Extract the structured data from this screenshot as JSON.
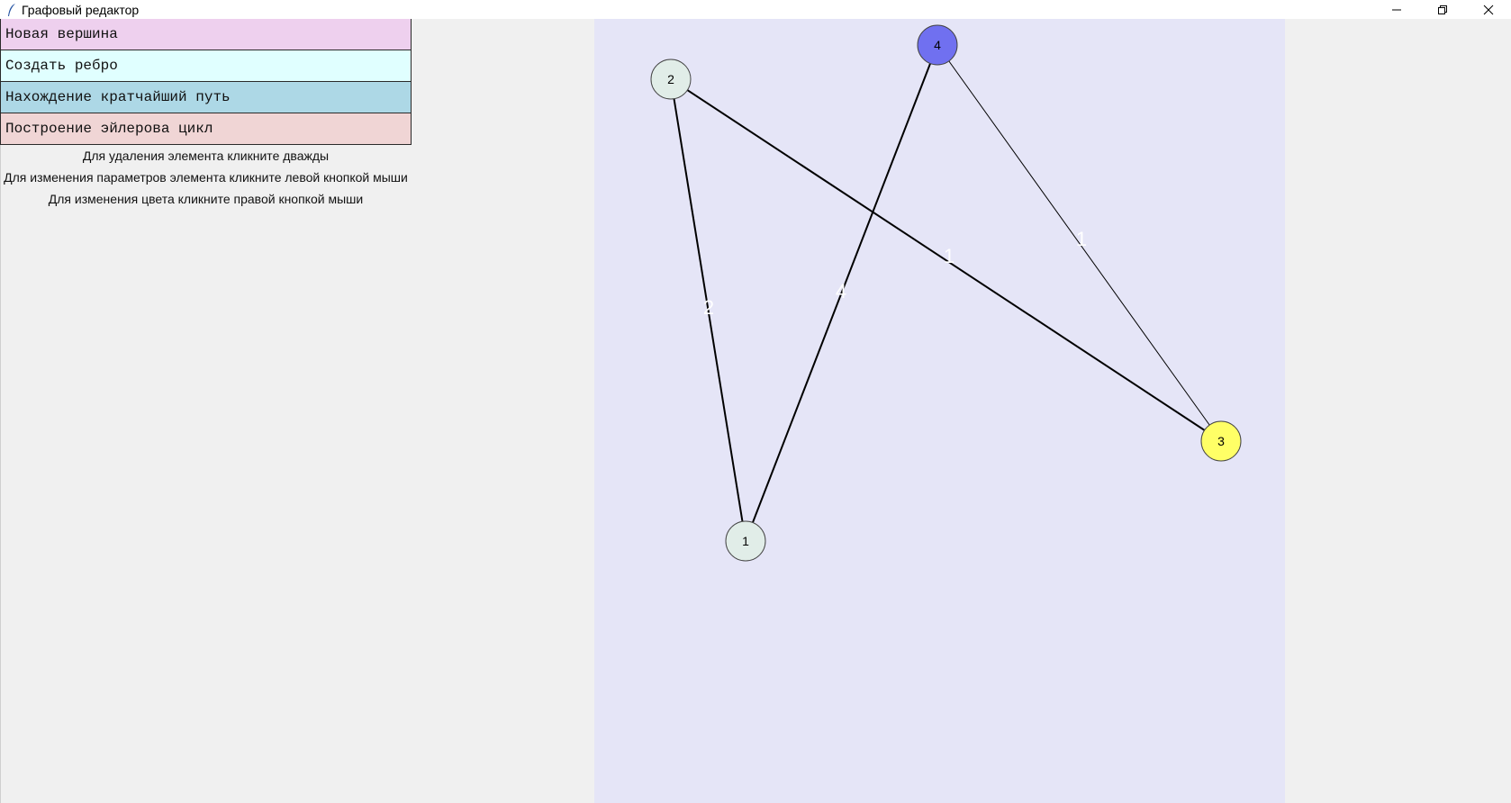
{
  "window": {
    "title": "Графовый редактор",
    "app_icon": "feather-icon",
    "controls": [
      "minimize-icon",
      "restore-icon",
      "close-icon"
    ]
  },
  "menu": [
    {
      "label": "Новая вершина",
      "color": "#eed0ee"
    },
    {
      "label": "Создать ребро",
      "color": "#e0ffff"
    },
    {
      "label": "Нахождение кратчайший путь",
      "color": "#add8e6"
    },
    {
      "label": "Построение эйлерова цикл",
      "color": "#f0d5d5"
    }
  ],
  "hints": [
    "Для удаления элемента кликните дважды",
    "Для изменения параметров элемента кликните левой кнопкой мыши",
    "Для изменения цвета кликните правой кнопкой мыши"
  ],
  "graph": {
    "canvas_color": "#e5e5f7",
    "vertices": [
      {
        "id": "1",
        "label": "1",
        "color": "#e1ede8"
      },
      {
        "id": "2",
        "label": "2",
        "color": "#e1ede8"
      },
      {
        "id": "3",
        "label": "3",
        "color": "#ffff66"
      },
      {
        "id": "4",
        "label": "4",
        "color": "#7070f0"
      }
    ],
    "edges": [
      {
        "from": "2",
        "to": "1",
        "weight": "2"
      },
      {
        "from": "4",
        "to": "1",
        "weight": "4"
      },
      {
        "from": "2",
        "to": "3",
        "weight": "1"
      },
      {
        "from": "4",
        "to": "3",
        "weight": "1"
      }
    ]
  }
}
